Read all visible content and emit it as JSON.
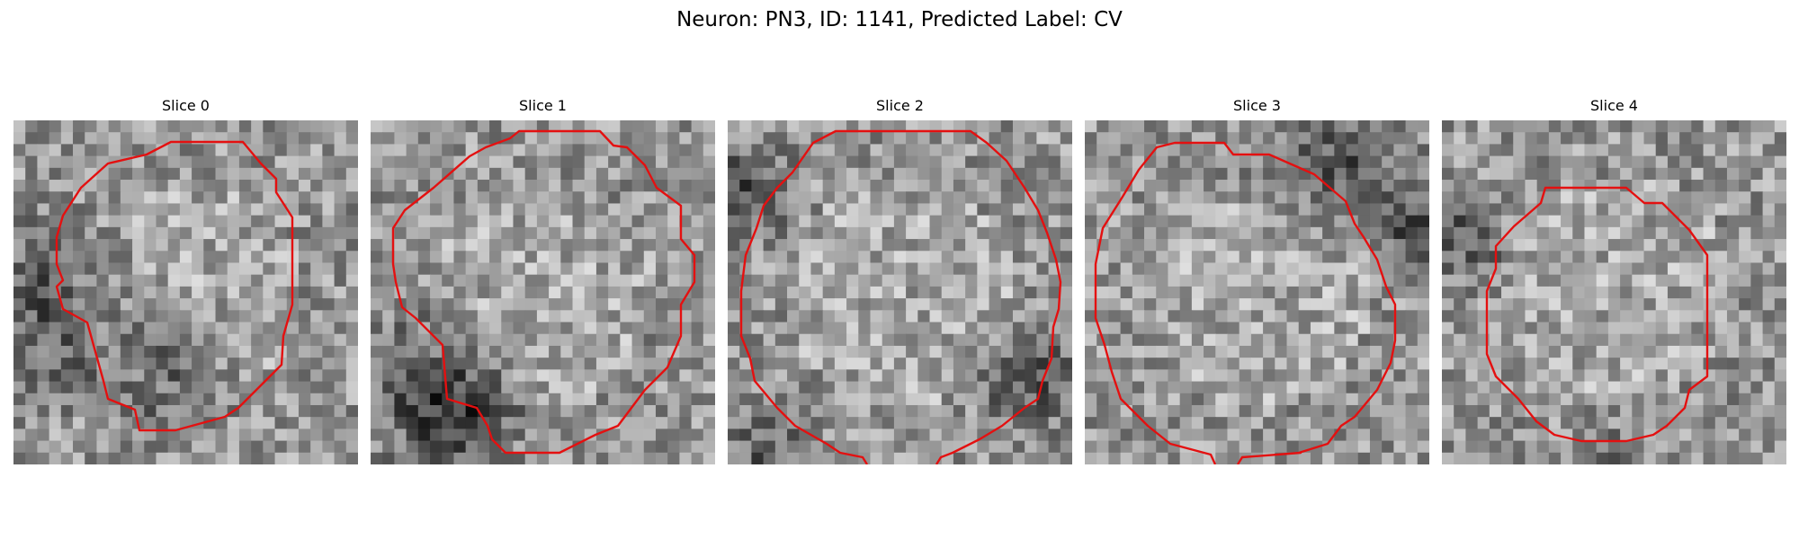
{
  "figure": {
    "title": "Neuron: PN3, ID: 1141, Predicted Label: CV",
    "contour_color": "#e41010",
    "slices": [
      {
        "title": "Slice 0",
        "seed": 11,
        "dark": [
          [
            0.1,
            0.55,
            0.35
          ],
          [
            0.45,
            0.72,
            0.25
          ]
        ]
      },
      {
        "title": "Slice 1",
        "seed": 23,
        "dark": [
          [
            0.15,
            0.8,
            0.3
          ],
          [
            0.3,
            0.85,
            0.22
          ]
        ]
      },
      {
        "title": "Slice 2",
        "seed": 37,
        "dark": [
          [
            0.05,
            0.2,
            0.2
          ],
          [
            0.88,
            0.75,
            0.22
          ],
          [
            0.12,
            0.95,
            0.15
          ]
        ]
      },
      {
        "title": "Slice 3",
        "seed": 41,
        "dark": [
          [
            0.72,
            0.12,
            0.3
          ],
          [
            0.95,
            0.3,
            0.18
          ]
        ]
      },
      {
        "title": "Slice 4",
        "seed": 53,
        "dark": [
          [
            0.05,
            0.35,
            0.18
          ],
          [
            0.5,
            1.0,
            0.12
          ]
        ]
      }
    ]
  }
}
